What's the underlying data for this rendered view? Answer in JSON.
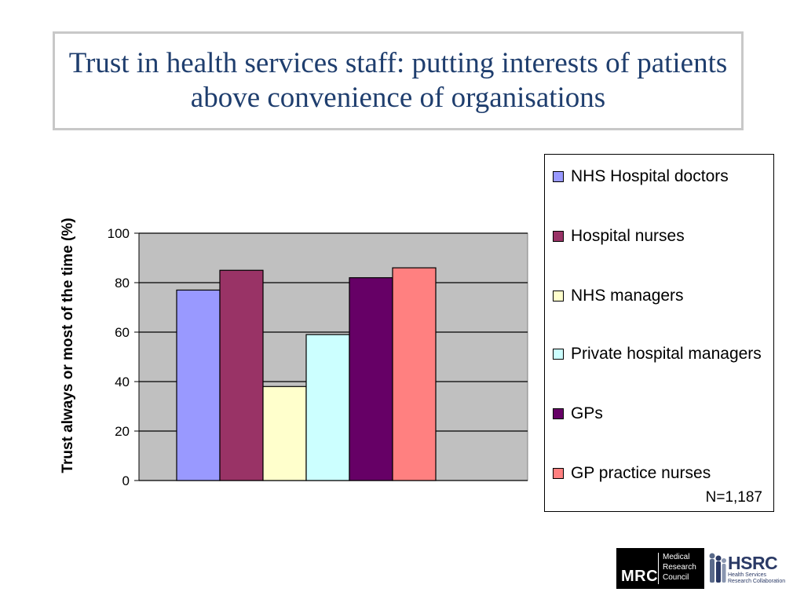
{
  "title": "Trust in health services staff: putting interests of patients above convenience of organisations",
  "chart_data": {
    "type": "bar",
    "title": "Trust in health services staff: putting interests of patients above convenience of organisations",
    "ylabel": "Trust always or most of the time (%)",
    "xlabel": "",
    "ylim": [
      0,
      100
    ],
    "yticks": [
      "0",
      "20",
      "40",
      "60",
      "80",
      "100"
    ],
    "grid": true,
    "legend_position": "right",
    "series": [
      {
        "name": "NHS Hospital doctors",
        "values": [
          77
        ],
        "color": "#9999ff"
      },
      {
        "name": "Hospital nurses",
        "values": [
          85
        ],
        "color": "#993366"
      },
      {
        "name": "NHS managers",
        "values": [
          38
        ],
        "color": "#ffffcc"
      },
      {
        "name": "Private hospital managers",
        "values": [
          59
        ],
        "color": "#ccffff"
      },
      {
        "name": "GPs",
        "values": [
          82
        ],
        "color": "#660066"
      },
      {
        "name": "GP practice nurses",
        "values": [
          86
        ],
        "color": "#ff8080"
      }
    ]
  },
  "legend": {
    "items": [
      {
        "label": "NHS Hospital doctors",
        "color": "#9999ff"
      },
      {
        "label": "Hospital nurses",
        "color": "#993366"
      },
      {
        "label": "NHS managers",
        "color": "#ffffcc"
      },
      {
        "label": "Private hospital managers",
        "color": "#ccffff"
      },
      {
        "label": "GPs",
        "color": "#660066"
      },
      {
        "label": "GP practice nurses",
        "color": "#ff8080"
      }
    ],
    "note": "N=1,187"
  },
  "logos": {
    "mrc_abbr": "MRC",
    "mrc_line1": "Medical",
    "mrc_line2": "Research",
    "mrc_line3": "Council",
    "hsrc_abbr": "HSRC",
    "hsrc_line1": "Health Services",
    "hsrc_line2": "Research Collaboration"
  }
}
